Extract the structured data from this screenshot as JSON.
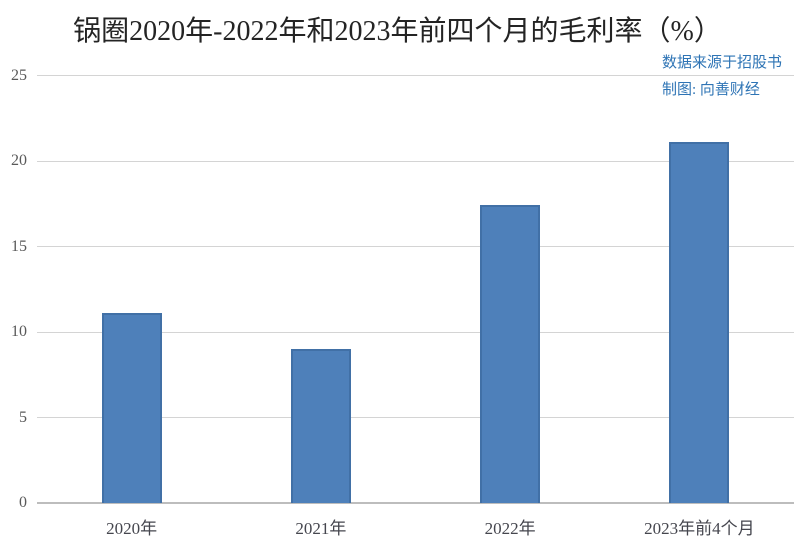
{
  "chart_data": {
    "type": "bar",
    "title": "锅圈2020年-2022年和2023年前四个月的毛利率（%）",
    "source_note": "数据来源于招股书",
    "credit_note": "制图: 向善财经",
    "categories": [
      "2020年",
      "2021年",
      "2022年",
      "2023年前4个月"
    ],
    "values": [
      11.1,
      9.0,
      17.4,
      21.1
    ],
    "ylim": [
      0,
      25
    ],
    "yticks": [
      0,
      5,
      10,
      15,
      20,
      25
    ],
    "grid": true,
    "legend": false,
    "bar_color": "#4e80ba",
    "bar_border_color": "#4170a6",
    "note_color": "#2e74b5"
  }
}
